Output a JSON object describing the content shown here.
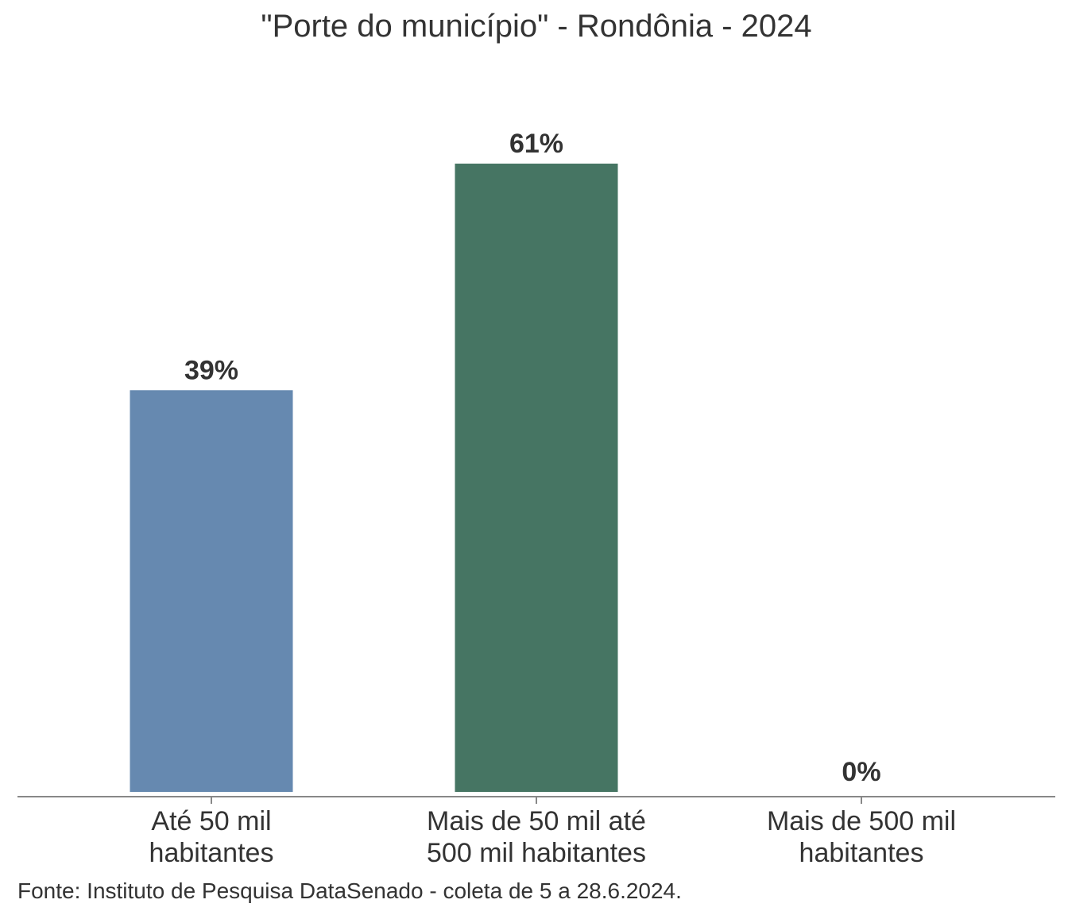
{
  "chart_data": {
    "type": "bar",
    "title": "\"Porte do município\" - Rondônia - 2024",
    "xlabel": "",
    "ylabel": "",
    "categories": [
      [
        "Até 50 mil",
        "habitantes"
      ],
      [
        "Mais de 50 mil até",
        "500 mil habitantes"
      ],
      [
        "Mais de 500 mil",
        "habitantes"
      ]
    ],
    "values": [
      39,
      61,
      0
    ],
    "value_labels": [
      "39%",
      "61%",
      "0%"
    ],
    "colors": [
      "#6689b0",
      "#467563",
      "#c9a66b"
    ],
    "ylim": [
      0,
      61
    ],
    "grid": false,
    "legend": "none"
  },
  "source": "Fonte: Instituto de Pesquisa DataSenado - coleta de 5 a 28.6.2024."
}
